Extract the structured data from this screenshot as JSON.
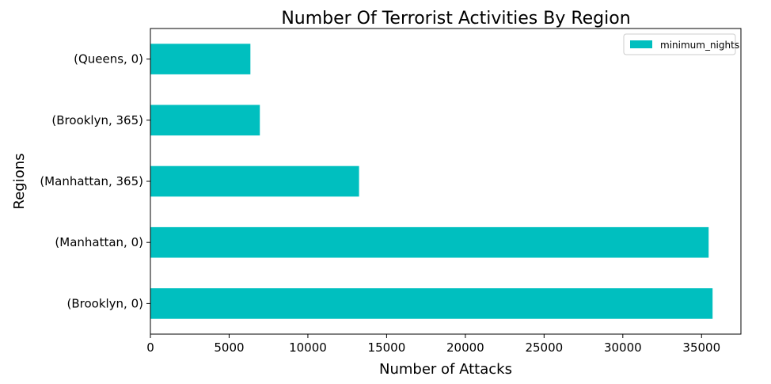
{
  "chart_data": {
    "type": "bar",
    "orientation": "horizontal",
    "title": "Number Of Terrorist Activities By Region",
    "xlabel": "Number of Attacks",
    "ylabel": "Regions",
    "categories": [
      "(Brooklyn, 0)",
      "(Manhattan, 0)",
      "(Manhattan, 365)",
      "(Brooklyn, 365)",
      "(Queens, 0)"
    ],
    "series": [
      {
        "name": "minimum_nights",
        "values": [
          35700,
          35450,
          13250,
          6950,
          6350
        ],
        "color": "#00BFBF"
      }
    ],
    "xlim": [
      0,
      37500
    ],
    "xticks": [
      0,
      5000,
      10000,
      15000,
      20000,
      25000,
      30000,
      35000
    ],
    "grid": false,
    "legend": "top-right"
  }
}
